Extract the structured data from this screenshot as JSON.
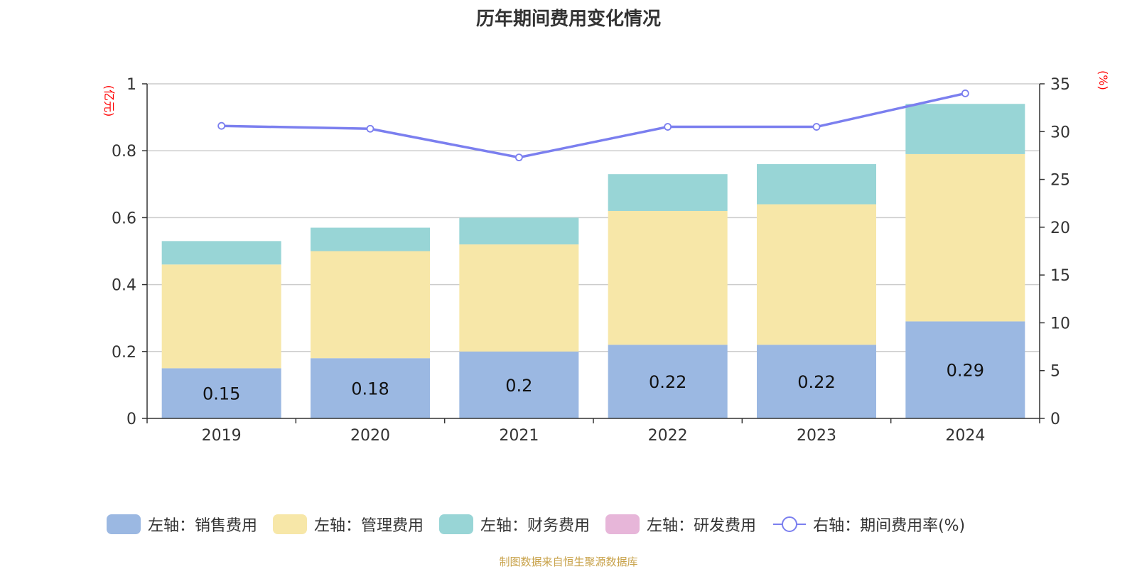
{
  "title": "历年期间费用变化情况",
  "source_note": "制图数据来自恒生聚源数据库",
  "axes": {
    "left_unit": "(亿元)",
    "right_unit": "(%)"
  },
  "colors": {
    "sales": "#9bb8e2",
    "admin": "#f7e7a8",
    "finance": "#98d5d6",
    "rnd": "#e7b6d9",
    "rate_line": "#7b7fef"
  },
  "legend": [
    {
      "label": "左轴：销售费用",
      "kind": "bar",
      "color": "#9bb8e2"
    },
    {
      "label": "左轴：管理费用",
      "kind": "bar",
      "color": "#f7e7a8"
    },
    {
      "label": "左轴：财务费用",
      "kind": "bar",
      "color": "#98d5d6"
    },
    {
      "label": "左轴：研发费用",
      "kind": "bar",
      "color": "#e7b6d9"
    },
    {
      "label": "右轴：期间费用率(%)",
      "kind": "line",
      "color": "#7b7fef"
    }
  ],
  "chart_data": {
    "type": "bar",
    "stacked": true,
    "categories": [
      "2019",
      "2020",
      "2021",
      "2022",
      "2023",
      "2024"
    ],
    "series": [
      {
        "name": "左轴：销售费用",
        "axis": "left",
        "values": [
          0.15,
          0.18,
          0.2,
          0.22,
          0.22,
          0.29
        ],
        "data_labels": [
          "0.15",
          "0.18",
          "0.2",
          "0.22",
          "0.22",
          "0.29"
        ]
      },
      {
        "name": "左轴：管理费用",
        "axis": "left",
        "values": [
          0.31,
          0.32,
          0.32,
          0.4,
          0.42,
          0.5
        ]
      },
      {
        "name": "左轴：财务费用",
        "axis": "left",
        "values": [
          0.07,
          0.07,
          0.08,
          0.11,
          0.12,
          0.15
        ]
      },
      {
        "name": "左轴：研发费用",
        "axis": "left",
        "values": [
          0,
          0,
          0,
          0,
          0,
          0
        ]
      },
      {
        "name": "右轴：期间费用率(%)",
        "axis": "right",
        "type": "line",
        "values": [
          30.6,
          30.3,
          27.3,
          30.5,
          30.5,
          34.0
        ]
      }
    ],
    "left_axis": {
      "min": 0,
      "max": 1,
      "ticks": [
        0,
        0.2,
        0.4,
        0.6,
        0.8,
        1
      ],
      "tick_labels": [
        "0",
        "0.2",
        "0.4",
        "0.6",
        "0.8",
        "1"
      ]
    },
    "right_axis": {
      "min": 0,
      "max": 35,
      "ticks": [
        0,
        5,
        10,
        15,
        20,
        25,
        30,
        35
      ],
      "tick_labels": [
        "0",
        "5",
        "10",
        "15",
        "20",
        "25",
        "30",
        "35"
      ]
    },
    "grid": true,
    "legend_position": "bottom"
  }
}
